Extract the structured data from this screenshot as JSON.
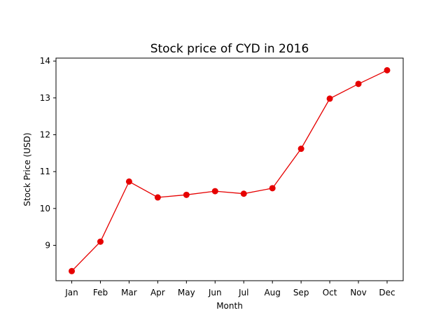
{
  "chart_data": {
    "type": "line",
    "title": "Stock price of CYD in 2016",
    "xlabel": "Month",
    "ylabel": "Stock Price (USD)",
    "categories": [
      "Jan",
      "Feb",
      "Mar",
      "Apr",
      "May",
      "Jun",
      "Jul",
      "Aug",
      "Sep",
      "Oct",
      "Nov",
      "Dec"
    ],
    "values": [
      8.3,
      9.1,
      10.73,
      10.3,
      10.37,
      10.47,
      10.4,
      10.55,
      11.62,
      12.98,
      13.38,
      13.75
    ],
    "yticks": [
      9,
      10,
      11,
      12,
      13,
      14
    ],
    "ylim": [
      8.04,
      14.08
    ],
    "grid": false,
    "marker": "circle",
    "color": "#e60000"
  }
}
